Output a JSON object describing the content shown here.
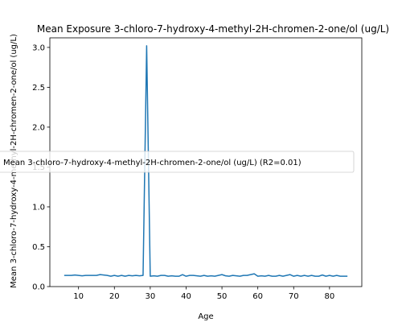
{
  "chart_data": {
    "type": "line",
    "title": "Mean Exposure 3-chloro-7-hydroxy-4-methyl-2H-chromen-2-one/ol (ug/L)",
    "xlabel": "Age",
    "ylabel": "Mean 3-chloro-7-hydroxy-4-methyl-2H-chromen-2-one/ol (ug/L)",
    "xlim": [
      2,
      89
    ],
    "ylim": [
      0,
      3.12
    ],
    "xticks": [
      10,
      20,
      30,
      40,
      50,
      60,
      70,
      80
    ],
    "yticks": [
      0.0,
      0.5,
      1.0,
      1.5,
      2.0,
      2.5,
      3.0
    ],
    "ytick_labels": [
      "0.0",
      "0.5",
      "1.0",
      "1.5",
      "2.0",
      "2.5",
      "3.0"
    ],
    "grid": false,
    "legend_position": "center",
    "series": [
      {
        "name": "Mean 3-chloro-7-hydroxy-4-methyl-2H-chromen-2-one/ol (ug/L) (R2=0.01)",
        "color": "#1f77b4",
        "x": [
          6,
          7,
          8,
          9,
          10,
          11,
          12,
          13,
          14,
          15,
          16,
          17,
          18,
          19,
          20,
          21,
          22,
          23,
          24,
          25,
          26,
          27,
          28,
          29,
          30,
          31,
          32,
          33,
          34,
          35,
          36,
          37,
          38,
          39,
          40,
          41,
          42,
          43,
          44,
          45,
          46,
          47,
          48,
          49,
          50,
          51,
          52,
          53,
          54,
          55,
          56,
          57,
          58,
          59,
          60,
          61,
          62,
          63,
          64,
          65,
          66,
          67,
          68,
          69,
          70,
          71,
          72,
          73,
          74,
          75,
          76,
          77,
          78,
          79,
          80,
          81,
          82,
          83,
          84,
          85
        ],
        "y": [
          0.14,
          0.14,
          0.14,
          0.145,
          0.14,
          0.135,
          0.14,
          0.14,
          0.14,
          0.14,
          0.15,
          0.145,
          0.14,
          0.13,
          0.14,
          0.13,
          0.14,
          0.13,
          0.14,
          0.135,
          0.14,
          0.135,
          0.14,
          3.02,
          0.13,
          0.135,
          0.13,
          0.14,
          0.14,
          0.13,
          0.135,
          0.13,
          0.13,
          0.15,
          0.13,
          0.14,
          0.14,
          0.135,
          0.13,
          0.14,
          0.13,
          0.135,
          0.13,
          0.14,
          0.15,
          0.135,
          0.13,
          0.14,
          0.135,
          0.13,
          0.14,
          0.14,
          0.15,
          0.16,
          0.13,
          0.135,
          0.13,
          0.14,
          0.13,
          0.13,
          0.14,
          0.13,
          0.14,
          0.15,
          0.13,
          0.14,
          0.13,
          0.14,
          0.13,
          0.14,
          0.13,
          0.13,
          0.145,
          0.13,
          0.14,
          0.13,
          0.14,
          0.13,
          0.13,
          0.13
        ]
      }
    ]
  }
}
